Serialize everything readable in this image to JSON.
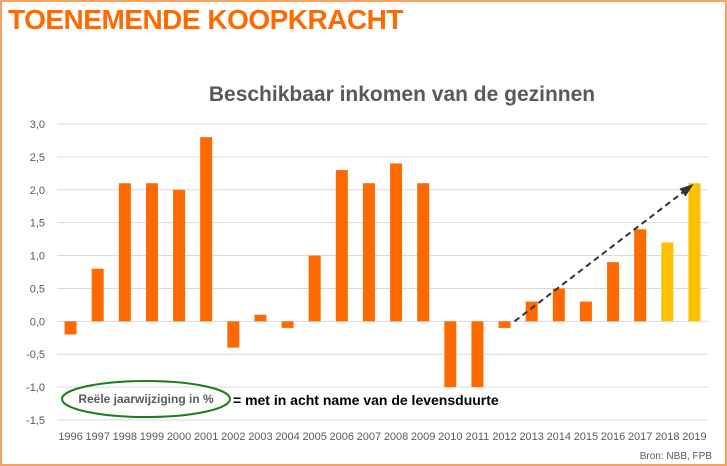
{
  "headline": "TOENEMENDE KOOPKRACHT",
  "source": "Bron: NBB, FPB",
  "annotation": {
    "circled": "Reële jaarwijziging in %",
    "explanation": "= met in acht name van de levensduurte"
  },
  "colors": {
    "headline": "#ff6a00",
    "bar": "#ff6a00",
    "bar_forecast": "#ffc000",
    "ellipse": "#1a7f1a",
    "arrow": "#333333",
    "border": "#f4a460"
  },
  "chart_data": {
    "type": "bar",
    "title": "Beschikbaar inkomen van de gezinnen",
    "xlabel": "",
    "ylabel": "",
    "ylim": [
      -1.5,
      3.0
    ],
    "yticks": [
      "3,0",
      "2,5",
      "2,0",
      "1,5",
      "1,0",
      "0,5",
      "0,0",
      "-0,5",
      "-1,0",
      "-1,5"
    ],
    "ytick_values": [
      3.0,
      2.5,
      2.0,
      1.5,
      1.0,
      0.5,
      0.0,
      -0.5,
      -1.0,
      -1.5
    ],
    "grid": true,
    "categories": [
      "1996",
      "1997",
      "1998",
      "1999",
      "2000",
      "2001",
      "2002",
      "2003",
      "2004",
      "2005",
      "2006",
      "2007",
      "2008",
      "2009",
      "2010",
      "2011",
      "2012",
      "2013",
      "2014",
      "2015",
      "2016",
      "2017",
      "2018",
      "2019"
    ],
    "values": [
      -0.2,
      0.8,
      2.1,
      2.1,
      2.0,
      2.8,
      -0.4,
      0.1,
      -0.1,
      1.0,
      2.3,
      2.1,
      2.4,
      2.1,
      -1.0,
      -1.0,
      -0.1,
      0.3,
      0.5,
      0.3,
      0.9,
      1.4,
      1.2,
      2.1
    ],
    "highlighted_categories": [
      "2018",
      "2019"
    ],
    "trend_arrow": {
      "from": [
        "2012",
        0.0
      ],
      "to": [
        "2019",
        2.05
      ],
      "style": "dashed"
    }
  }
}
